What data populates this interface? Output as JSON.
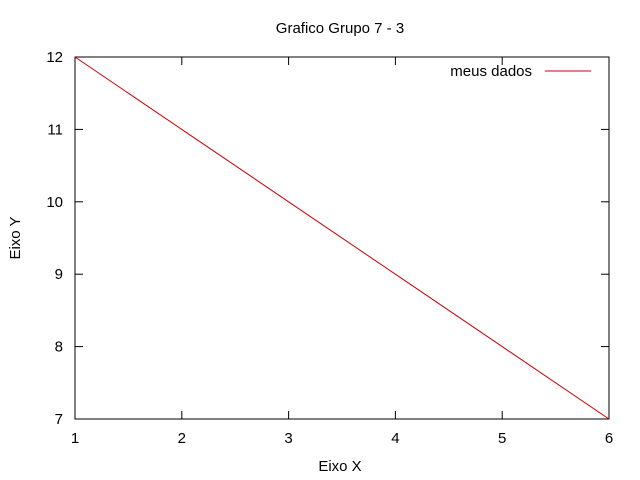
{
  "chart_data": {
    "type": "line",
    "title": "Grafico Grupo 7 - 3",
    "xlabel": "Eixo X",
    "ylabel": "Eixo Y",
    "xlim": [
      1,
      6
    ],
    "ylim": [
      7,
      12
    ],
    "xticks": [
      1,
      2,
      3,
      4,
      5,
      6
    ],
    "yticks": [
      7,
      8,
      9,
      10,
      11,
      12
    ],
    "grid": false,
    "legend_position": "top-right",
    "series": [
      {
        "name": "meus dados",
        "color": "#cc0000",
        "x": [
          1,
          2,
          3,
          4,
          5,
          6
        ],
        "y": [
          12,
          11,
          10,
          9,
          8,
          7
        ]
      }
    ]
  }
}
